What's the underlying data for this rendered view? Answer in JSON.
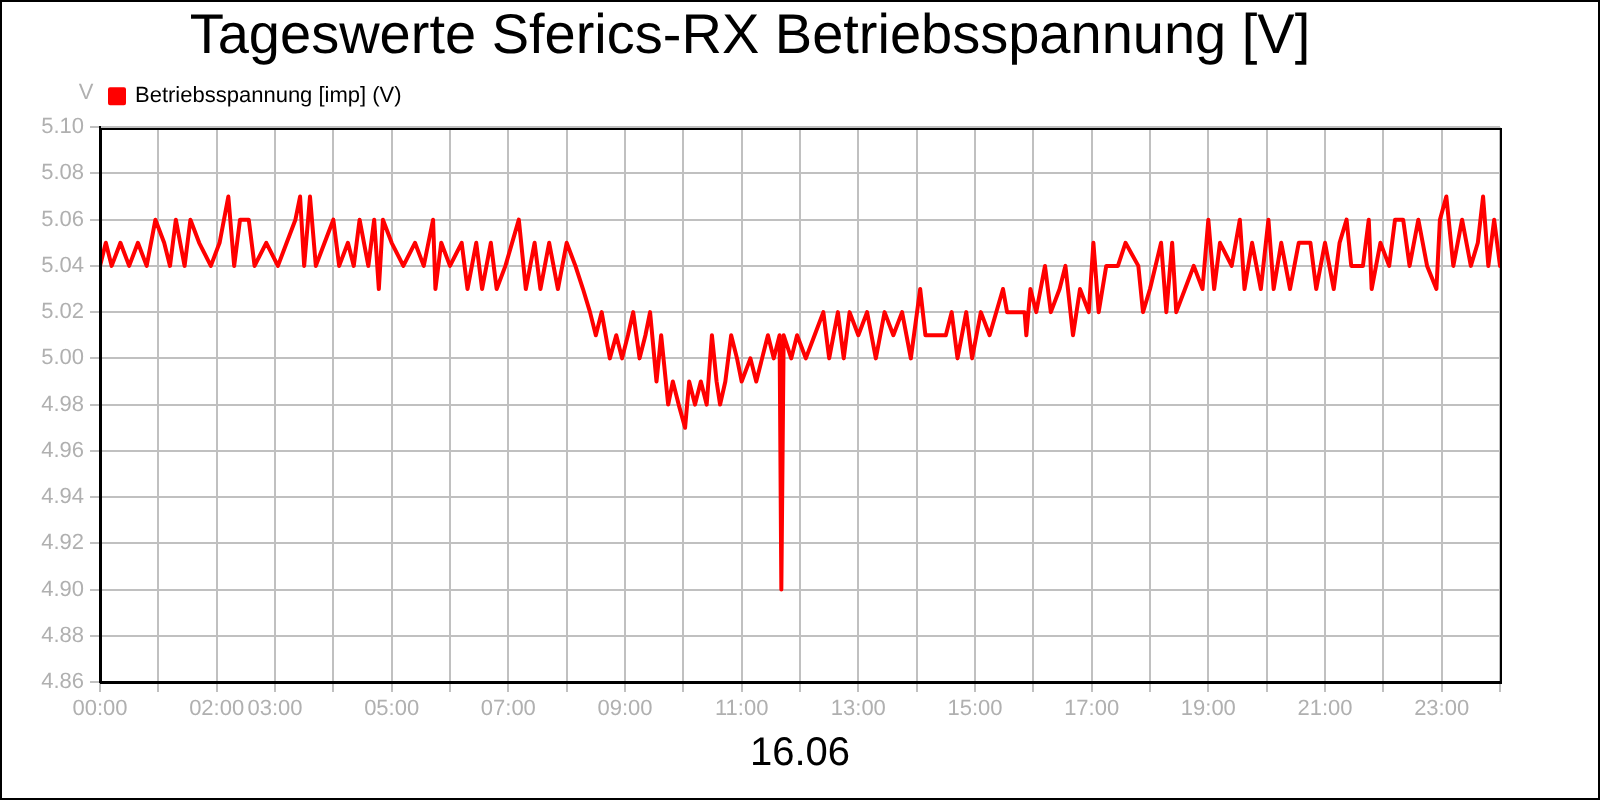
{
  "chart_data": {
    "type": "line",
    "title": "Tageswerte Sferics-RX Betriebsspannung [V]",
    "xlabel": "16.06",
    "ylabel": "V",
    "x": [
      0,
      0.1,
      0.2,
      0.35,
      0.5,
      0.65,
      0.8,
      0.95,
      1.1,
      1.2,
      1.3,
      1.45,
      1.55,
      1.7,
      1.9,
      2.05,
      2.2,
      2.3,
      2.4,
      2.55,
      2.65,
      2.85,
      3.05,
      3.2,
      3.35,
      3.43,
      3.5,
      3.6,
      3.7,
      3.85,
      4,
      4.1,
      4.25,
      4.35,
      4.45,
      4.6,
      4.7,
      4.78,
      4.85,
      5,
      5.2,
      5.4,
      5.55,
      5.71,
      5.75,
      5.85,
      6,
      6.2,
      6.3,
      6.45,
      6.55,
      6.7,
      6.8,
      6.95,
      7.18,
      7.3,
      7.45,
      7.55,
      7.7,
      7.85,
      8,
      8.15,
      8.28,
      8.4,
      8.5,
      8.6,
      8.74,
      8.85,
      8.95,
      9.05,
      9.14,
      9.25,
      9.35,
      9.43,
      9.54,
      9.62,
      9.74,
      9.82,
      9.92,
      10.03,
      10.1,
      10.2,
      10.3,
      10.4,
      10.49,
      10.57,
      10.63,
      10.72,
      10.82,
      10.92,
      11,
      11.15,
      11.25,
      11.35,
      11.45,
      11.55,
      11.65,
      11.68,
      11.72,
      11.85,
      11.95,
      12.1,
      12.25,
      12.4,
      12.5,
      12.65,
      12.75,
      12.85,
      13,
      13.15,
      13.3,
      13.45,
      13.6,
      13.75,
      13.9,
      14.06,
      14.15,
      14.3,
      14.5,
      14.6,
      14.7,
      14.85,
      14.95,
      15.1,
      15.25,
      15.48,
      15.55,
      15.85,
      15.88,
      15.95,
      16.05,
      16.2,
      16.3,
      16.45,
      16.55,
      16.68,
      16.8,
      16.95,
      17.03,
      17.12,
      17.25,
      17.45,
      17.58,
      17.8,
      17.88,
      18,
      18.19,
      18.28,
      18.38,
      18.45,
      18.6,
      18.75,
      18.9,
      19,
      19.1,
      19.2,
      19.4,
      19.54,
      19.62,
      19.75,
      19.9,
      20.03,
      20.12,
      20.25,
      20.4,
      20.55,
      20.75,
      20.85,
      21,
      21.15,
      21.25,
      21.37,
      21.45,
      21.65,
      21.75,
      21.8,
      21.95,
      22.1,
      22.2,
      22.34,
      22.45,
      22.6,
      22.75,
      22.91,
      22.97,
      23.08,
      23.2,
      23.35,
      23.5,
      23.62,
      23.71,
      23.8,
      23.9,
      24
    ],
    "series": [
      {
        "name": "Betriebsspannung [imp] (V)",
        "color": "#ff0000",
        "values": [
          5.04,
          5.05,
          5.04,
          5.05,
          5.04,
          5.05,
          5.04,
          5.06,
          5.05,
          5.04,
          5.06,
          5.04,
          5.06,
          5.05,
          5.04,
          5.05,
          5.07,
          5.04,
          5.06,
          5.06,
          5.04,
          5.05,
          5.04,
          5.05,
          5.06,
          5.07,
          5.04,
          5.07,
          5.04,
          5.05,
          5.06,
          5.04,
          5.05,
          5.04,
          5.06,
          5.04,
          5.06,
          5.03,
          5.06,
          5.05,
          5.04,
          5.05,
          5.04,
          5.06,
          5.03,
          5.05,
          5.04,
          5.05,
          5.03,
          5.05,
          5.03,
          5.05,
          5.03,
          5.04,
          5.06,
          5.03,
          5.05,
          5.03,
          5.05,
          5.03,
          5.05,
          5.04,
          5.03,
          5.02,
          5.01,
          5.02,
          5.0,
          5.01,
          5.0,
          5.01,
          5.02,
          5.0,
          5.01,
          5.02,
          4.99,
          5.01,
          4.98,
          4.99,
          4.98,
          4.97,
          4.99,
          4.98,
          4.99,
          4.98,
          5.01,
          4.99,
          4.98,
          4.99,
          5.01,
          5.0,
          4.99,
          5.0,
          4.99,
          5.0,
          5.01,
          5.0,
          5.01,
          4.9,
          5.01,
          5.0,
          5.01,
          5.0,
          5.01,
          5.02,
          5.0,
          5.02,
          5.0,
          5.02,
          5.01,
          5.02,
          5.0,
          5.02,
          5.01,
          5.02,
          5.0,
          5.03,
          5.01,
          5.01,
          5.01,
          5.02,
          5.0,
          5.02,
          5.0,
          5.02,
          5.01,
          5.03,
          5.02,
          5.02,
          5.01,
          5.03,
          5.02,
          5.04,
          5.02,
          5.03,
          5.04,
          5.01,
          5.03,
          5.02,
          5.05,
          5.02,
          5.04,
          5.04,
          5.05,
          5.04,
          5.02,
          5.03,
          5.05,
          5.02,
          5.05,
          5.02,
          5.03,
          5.04,
          5.03,
          5.06,
          5.03,
          5.05,
          5.04,
          5.06,
          5.03,
          5.05,
          5.03,
          5.06,
          5.03,
          5.05,
          5.03,
          5.05,
          5.05,
          5.03,
          5.05,
          5.03,
          5.05,
          5.06,
          5.04,
          5.04,
          5.06,
          5.03,
          5.05,
          5.04,
          5.06,
          5.06,
          5.04,
          5.06,
          5.04,
          5.03,
          5.06,
          5.07,
          5.04,
          5.06,
          5.04,
          5.05,
          5.07,
          5.04,
          5.06,
          5.04
        ]
      }
    ],
    "xlim": [
      0,
      24
    ],
    "xticks": [
      {
        "value": 0,
        "label": "00:00"
      },
      {
        "value": 1,
        "label": null
      },
      {
        "value": 2,
        "label": "02:00"
      },
      {
        "value": 3,
        "label": "03:00"
      },
      {
        "value": 4,
        "label": null
      },
      {
        "value": 5,
        "label": "05:00"
      },
      {
        "value": 6,
        "label": null
      },
      {
        "value": 7,
        "label": "07:00"
      },
      {
        "value": 8,
        "label": null
      },
      {
        "value": 9,
        "label": "09:00"
      },
      {
        "value": 10,
        "label": null
      },
      {
        "value": 11,
        "label": "11:00"
      },
      {
        "value": 12,
        "label": null
      },
      {
        "value": 13,
        "label": "13:00"
      },
      {
        "value": 14,
        "label": null
      },
      {
        "value": 15,
        "label": "15:00"
      },
      {
        "value": 16,
        "label": null
      },
      {
        "value": 17,
        "label": "17:00"
      },
      {
        "value": 18,
        "label": null
      },
      {
        "value": 19,
        "label": "19:00"
      },
      {
        "value": 20,
        "label": null
      },
      {
        "value": 21,
        "label": "21:00"
      },
      {
        "value": 22,
        "label": null
      },
      {
        "value": 23,
        "label": "23:00"
      },
      {
        "value": 24,
        "label": null
      }
    ],
    "ylim": [
      4.86,
      5.1
    ],
    "yticks": [
      4.86,
      4.88,
      {
        "value": 4.9,
        "label": "4.90"
      },
      4.92,
      4.94,
      4.96,
      4.98,
      {
        "value": 5,
        "label": "5.00"
      },
      5.02,
      5.04,
      5.06,
      5.08,
      {
        "value": 5.1,
        "label": "5.10"
      }
    ],
    "grid": true,
    "legend": "top left",
    "marker": "none",
    "line_style": "solid"
  }
}
